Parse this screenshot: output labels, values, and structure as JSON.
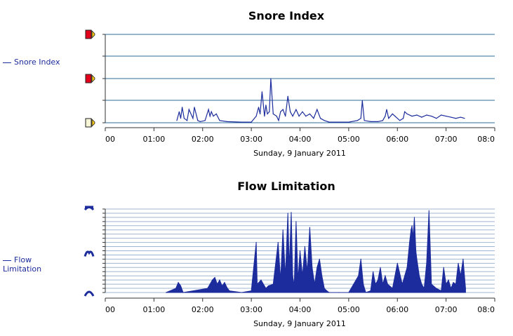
{
  "chart_data": [
    {
      "type": "area",
      "title": "Snore Index",
      "xlabel": "Sunday, 9 January 2011",
      "ylabel": "",
      "legend": [
        "Snore Index"
      ],
      "legend_position": "left",
      "x_tick_labels": [
        "00",
        "01:00",
        "02:00",
        "03:00",
        "04:00",
        "05:00",
        "06:00",
        "07:00",
        "08:0"
      ],
      "x_range_hours": [
        0,
        8
      ],
      "y_range": [
        0,
        4
      ],
      "y_tick_icons": [
        "snore-level-high-icon",
        "snore-level-medium-icon",
        "snore-level-low-icon"
      ],
      "grid": true,
      "line_color": "#1c2c9c",
      "grid_color": "#2e6c9c",
      "series": [
        {
          "name": "Snore Index",
          "x": [
            1.47,
            1.52,
            1.55,
            1.58,
            1.62,
            1.68,
            1.72,
            1.8,
            1.83,
            1.9,
            1.95,
            2.05,
            2.12,
            2.15,
            2.18,
            2.22,
            2.28,
            2.35,
            2.5,
            2.8,
            3.0,
            3.1,
            3.15,
            3.18,
            3.22,
            3.27,
            3.3,
            3.33,
            3.37,
            3.4,
            3.45,
            3.52,
            3.56,
            3.6,
            3.65,
            3.7,
            3.75,
            3.8,
            3.85,
            3.92,
            3.98,
            4.05,
            4.12,
            4.2,
            4.28,
            4.35,
            4.42,
            4.5,
            4.6,
            4.8,
            5.0,
            5.18,
            5.25,
            5.28,
            5.32,
            5.45,
            5.6,
            5.7,
            5.75,
            5.78,
            5.82,
            5.9,
            5.95,
            6.05,
            6.12,
            6.15,
            6.2,
            6.3,
            6.4,
            6.5,
            6.6,
            6.7,
            6.8,
            6.9,
            7.0,
            7.1,
            7.2,
            7.3,
            7.38
          ],
          "y": [
            0.1,
            0.5,
            0.2,
            0.7,
            0.2,
            0.1,
            0.6,
            0.2,
            0.7,
            0.1,
            0.05,
            0.1,
            0.6,
            0.3,
            0.5,
            0.3,
            0.4,
            0.1,
            0.05,
            0.03,
            0.03,
            0.3,
            0.7,
            0.4,
            1.4,
            0.3,
            0.8,
            0.4,
            0.5,
            2.0,
            0.4,
            0.3,
            0.1,
            0.5,
            0.6,
            0.3,
            1.2,
            0.5,
            0.3,
            0.6,
            0.3,
            0.5,
            0.3,
            0.4,
            0.2,
            0.6,
            0.2,
            0.1,
            0.03,
            0.03,
            0.03,
            0.1,
            0.2,
            1.0,
            0.1,
            0.05,
            0.05,
            0.1,
            0.3,
            0.6,
            0.2,
            0.4,
            0.3,
            0.1,
            0.2,
            0.5,
            0.4,
            0.3,
            0.35,
            0.25,
            0.35,
            0.3,
            0.2,
            0.35,
            0.3,
            0.25,
            0.2,
            0.25,
            0.2
          ]
        }
      ]
    },
    {
      "type": "area",
      "title": "Flow Limitation",
      "xlabel": "Sunday, 9 January 2011",
      "ylabel": "",
      "legend": [
        "Flow Limitation"
      ],
      "legend_position": "left",
      "x_tick_labels": [
        "00",
        "01:00",
        "02:00",
        "03:00",
        "04:00",
        "05:00",
        "06:00",
        "07:00",
        "08:0"
      ],
      "x_range_hours": [
        0,
        8
      ],
      "y_range": [
        0,
        1
      ],
      "y_tick_icons": [
        "flow-limited-icon",
        "flow-partial-icon",
        "flow-normal-icon"
      ],
      "grid": true,
      "line_color": "#1c2c9c",
      "grid_color": "#9fb7d0",
      "series": [
        {
          "name": "Flow Limitation",
          "x": [
            1.25,
            1.45,
            1.5,
            1.55,
            1.6,
            2.1,
            2.15,
            2.2,
            2.25,
            2.3,
            2.35,
            2.4,
            2.45,
            2.5,
            2.55,
            2.8,
            3.0,
            3.1,
            3.12,
            3.2,
            3.3,
            3.35,
            3.45,
            3.55,
            3.6,
            3.65,
            3.7,
            3.75,
            3.78,
            3.82,
            3.85,
            3.88,
            3.92,
            3.96,
            4.0,
            4.05,
            4.1,
            4.15,
            4.2,
            4.25,
            4.3,
            4.35,
            4.4,
            4.45,
            4.5,
            4.55,
            4.6,
            4.8,
            5.0,
            5.2,
            5.25,
            5.3,
            5.35,
            5.45,
            5.5,
            5.55,
            5.6,
            5.65,
            5.7,
            5.75,
            5.8,
            5.9,
            6.0,
            6.1,
            6.15,
            6.2,
            6.25,
            6.28,
            6.3,
            6.32,
            6.35,
            6.38,
            6.4,
            6.45,
            6.5,
            6.55,
            6.6,
            6.65,
            6.7,
            6.8,
            6.9,
            6.95,
            7.0,
            7.05,
            7.1,
            7.15,
            7.2,
            7.25,
            7.3,
            7.35,
            7.4
          ],
          "y": [
            0,
            0.05,
            0.12,
            0.08,
            0,
            0.05,
            0.1,
            0.15,
            0.18,
            0.1,
            0.15,
            0.08,
            0.12,
            0.06,
            0.02,
            0,
            0.02,
            0.6,
            0.1,
            0.15,
            0.05,
            0.08,
            0.1,
            0.6,
            0.15,
            0.75,
            0.2,
            0.95,
            0.3,
            0.96,
            0.2,
            0.08,
            0.85,
            0.15,
            0.5,
            0.2,
            0.55,
            0.25,
            0.78,
            0.3,
            0.1,
            0.3,
            0.4,
            0.2,
            0.05,
            0.02,
            0,
            0,
            0,
            0.2,
            0.4,
            0.1,
            0,
            0.02,
            0.25,
            0.1,
            0.15,
            0.3,
            0.1,
            0.2,
            0.1,
            0.05,
            0.35,
            0.1,
            0.2,
            0.3,
            0.6,
            0.75,
            0.8,
            0.65,
            0.9,
            0.5,
            0.4,
            0.2,
            0.1,
            0.05,
            0.35,
            0.98,
            0.1,
            0.05,
            0.02,
            0.3,
            0.1,
            0.15,
            0.05,
            0.12,
            0.1,
            0.35,
            0.2,
            0.4,
            0.05
          ]
        }
      ]
    }
  ]
}
